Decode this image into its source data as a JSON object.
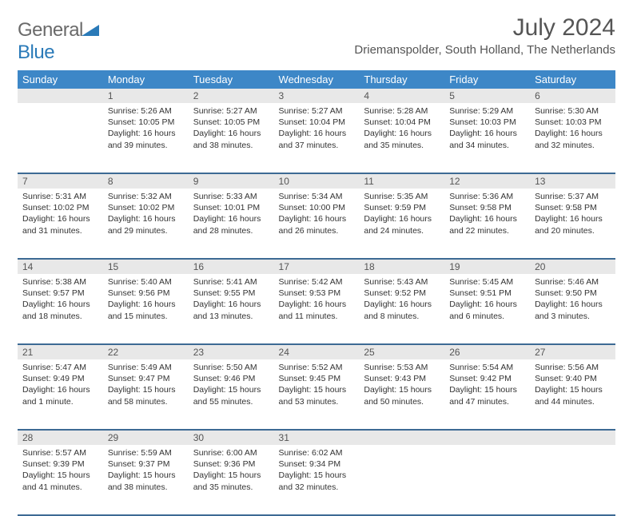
{
  "logo": {
    "general": "General",
    "blue": "Blue"
  },
  "title": "July 2024",
  "location": "Driemanspolder, South Holland, The Netherlands",
  "weekdays": [
    "Sunday",
    "Monday",
    "Tuesday",
    "Wednesday",
    "Thursday",
    "Friday",
    "Saturday"
  ],
  "colors": {
    "header_bg": "#3d87c7",
    "header_text": "#ffffff",
    "daynum_bg": "#e8e8e8",
    "border": "#3d6a94",
    "text": "#333333",
    "logo_gray": "#6a6a6a",
    "logo_blue": "#2a7ab8"
  },
  "weeks": [
    [
      null,
      {
        "n": "1",
        "sr": "5:26 AM",
        "ss": "10:05 PM",
        "dl": "16 hours and 39 minutes."
      },
      {
        "n": "2",
        "sr": "5:27 AM",
        "ss": "10:05 PM",
        "dl": "16 hours and 38 minutes."
      },
      {
        "n": "3",
        "sr": "5:27 AM",
        "ss": "10:04 PM",
        "dl": "16 hours and 37 minutes."
      },
      {
        "n": "4",
        "sr": "5:28 AM",
        "ss": "10:04 PM",
        "dl": "16 hours and 35 minutes."
      },
      {
        "n": "5",
        "sr": "5:29 AM",
        "ss": "10:03 PM",
        "dl": "16 hours and 34 minutes."
      },
      {
        "n": "6",
        "sr": "5:30 AM",
        "ss": "10:03 PM",
        "dl": "16 hours and 32 minutes."
      }
    ],
    [
      {
        "n": "7",
        "sr": "5:31 AM",
        "ss": "10:02 PM",
        "dl": "16 hours and 31 minutes."
      },
      {
        "n": "8",
        "sr": "5:32 AM",
        "ss": "10:02 PM",
        "dl": "16 hours and 29 minutes."
      },
      {
        "n": "9",
        "sr": "5:33 AM",
        "ss": "10:01 PM",
        "dl": "16 hours and 28 minutes."
      },
      {
        "n": "10",
        "sr": "5:34 AM",
        "ss": "10:00 PM",
        "dl": "16 hours and 26 minutes."
      },
      {
        "n": "11",
        "sr": "5:35 AM",
        "ss": "9:59 PM",
        "dl": "16 hours and 24 minutes."
      },
      {
        "n": "12",
        "sr": "5:36 AM",
        "ss": "9:58 PM",
        "dl": "16 hours and 22 minutes."
      },
      {
        "n": "13",
        "sr": "5:37 AM",
        "ss": "9:58 PM",
        "dl": "16 hours and 20 minutes."
      }
    ],
    [
      {
        "n": "14",
        "sr": "5:38 AM",
        "ss": "9:57 PM",
        "dl": "16 hours and 18 minutes."
      },
      {
        "n": "15",
        "sr": "5:40 AM",
        "ss": "9:56 PM",
        "dl": "16 hours and 15 minutes."
      },
      {
        "n": "16",
        "sr": "5:41 AM",
        "ss": "9:55 PM",
        "dl": "16 hours and 13 minutes."
      },
      {
        "n": "17",
        "sr": "5:42 AM",
        "ss": "9:53 PM",
        "dl": "16 hours and 11 minutes."
      },
      {
        "n": "18",
        "sr": "5:43 AM",
        "ss": "9:52 PM",
        "dl": "16 hours and 8 minutes."
      },
      {
        "n": "19",
        "sr": "5:45 AM",
        "ss": "9:51 PM",
        "dl": "16 hours and 6 minutes."
      },
      {
        "n": "20",
        "sr": "5:46 AM",
        "ss": "9:50 PM",
        "dl": "16 hours and 3 minutes."
      }
    ],
    [
      {
        "n": "21",
        "sr": "5:47 AM",
        "ss": "9:49 PM",
        "dl": "16 hours and 1 minute."
      },
      {
        "n": "22",
        "sr": "5:49 AM",
        "ss": "9:47 PM",
        "dl": "15 hours and 58 minutes."
      },
      {
        "n": "23",
        "sr": "5:50 AM",
        "ss": "9:46 PM",
        "dl": "15 hours and 55 minutes."
      },
      {
        "n": "24",
        "sr": "5:52 AM",
        "ss": "9:45 PM",
        "dl": "15 hours and 53 minutes."
      },
      {
        "n": "25",
        "sr": "5:53 AM",
        "ss": "9:43 PM",
        "dl": "15 hours and 50 minutes."
      },
      {
        "n": "26",
        "sr": "5:54 AM",
        "ss": "9:42 PM",
        "dl": "15 hours and 47 minutes."
      },
      {
        "n": "27",
        "sr": "5:56 AM",
        "ss": "9:40 PM",
        "dl": "15 hours and 44 minutes."
      }
    ],
    [
      {
        "n": "28",
        "sr": "5:57 AM",
        "ss": "9:39 PM",
        "dl": "15 hours and 41 minutes."
      },
      {
        "n": "29",
        "sr": "5:59 AM",
        "ss": "9:37 PM",
        "dl": "15 hours and 38 minutes."
      },
      {
        "n": "30",
        "sr": "6:00 AM",
        "ss": "9:36 PM",
        "dl": "15 hours and 35 minutes."
      },
      {
        "n": "31",
        "sr": "6:02 AM",
        "ss": "9:34 PM",
        "dl": "15 hours and 32 minutes."
      },
      null,
      null,
      null
    ]
  ],
  "labels": {
    "sunrise": "Sunrise: ",
    "sunset": "Sunset: ",
    "daylight": "Daylight: "
  }
}
